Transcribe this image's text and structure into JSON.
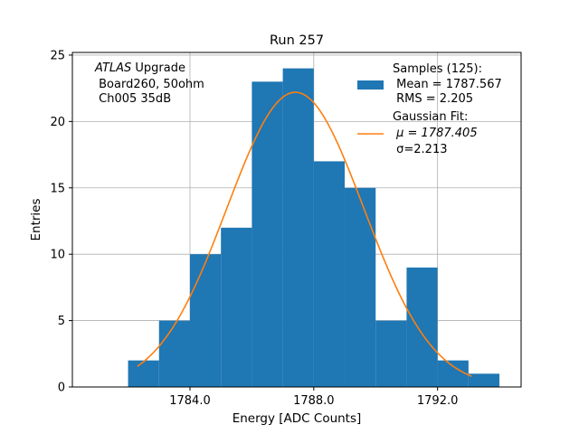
{
  "chart_data": {
    "type": "bar",
    "title": "Run 257",
    "xlabel": "Energy [ADC Counts]",
    "ylabel": "Entries",
    "xlim": [
      1780.2,
      1794.7
    ],
    "ylim": [
      0,
      25.2
    ],
    "xticks": [
      1784.0,
      1788.0,
      1792.0
    ],
    "xtick_labels": [
      "1784.0",
      "1788.0",
      "1792.0"
    ],
    "yticks": [
      0,
      5,
      10,
      15,
      20,
      25
    ],
    "ytick_labels": [
      "0",
      "5",
      "10",
      "15",
      "20",
      "25"
    ],
    "grid": true,
    "bins": [
      {
        "x0": 1782.0,
        "x1": 1783.0,
        "count": 2
      },
      {
        "x0": 1783.0,
        "x1": 1784.0,
        "count": 5
      },
      {
        "x0": 1784.0,
        "x1": 1785.0,
        "count": 10
      },
      {
        "x0": 1785.0,
        "x1": 1786.0,
        "count": 12
      },
      {
        "x0": 1786.0,
        "x1": 1787.0,
        "count": 23
      },
      {
        "x0": 1787.0,
        "x1": 1788.0,
        "count": 24
      },
      {
        "x0": 1788.0,
        "x1": 1789.0,
        "count": 17
      },
      {
        "x0": 1789.0,
        "x1": 1790.0,
        "count": 15
      },
      {
        "x0": 1790.0,
        "x1": 1791.0,
        "count": 5
      },
      {
        "x0": 1791.0,
        "x1": 1792.0,
        "count": 9
      },
      {
        "x0": 1792.0,
        "x1": 1793.0,
        "count": 2
      },
      {
        "x0": 1793.0,
        "x1": 1794.0,
        "count": 1
      }
    ],
    "fit": {
      "mu": 1787.405,
      "sigma": 2.213,
      "amplitude": 22.2,
      "x_range": [
        1782.3,
        1793.1
      ]
    },
    "colors": {
      "hist": "#1f77b4",
      "fit": "#ff7f0e",
      "grid": "#b0b0b0"
    },
    "legend": {
      "position": "top-right",
      "hist_lines": [
        "Samples (125):",
        " Mean = 1787.567",
        " RMS = 2.205"
      ],
      "fit_lines": [
        "Gaussian Fit:",
        " μ = 1787.405",
        " σ=2.213"
      ]
    },
    "annotation": {
      "position": "top-left",
      "italic": "ATLAS",
      "suffix": " Upgrade",
      "lines": [
        " Board260, 50ohm",
        " Ch005 35dB"
      ]
    }
  }
}
